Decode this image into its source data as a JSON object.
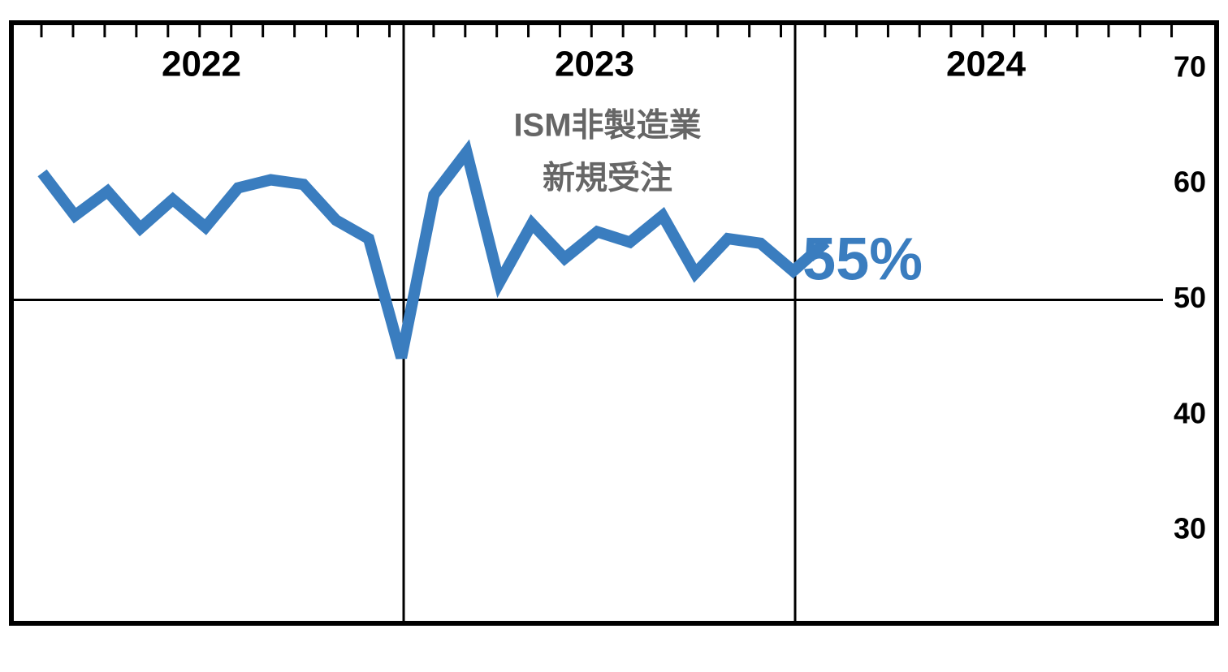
{
  "chart_data": {
    "type": "line",
    "title": [
      "ISM非製造業",
      "新規受注"
    ],
    "periods": [
      "2022",
      "2023",
      "2024"
    ],
    "series": [
      {
        "name": null,
        "color": "#3a7dbf",
        "values": [
          61.0,
          57.3,
          59.4,
          56.2,
          58.7,
          56.3,
          59.7,
          60.4,
          60.0,
          56.9,
          55.3,
          45.0,
          59.1,
          62.8,
          51.5,
          56.6,
          53.6,
          55.9,
          55.0,
          57.3,
          52.3,
          55.3,
          54.9,
          52.5,
          55.0
        ]
      }
    ],
    "annotation": "55%",
    "ylim": [
      22,
      74
    ],
    "yticks": [
      30,
      40,
      50,
      60,
      70
    ]
  }
}
